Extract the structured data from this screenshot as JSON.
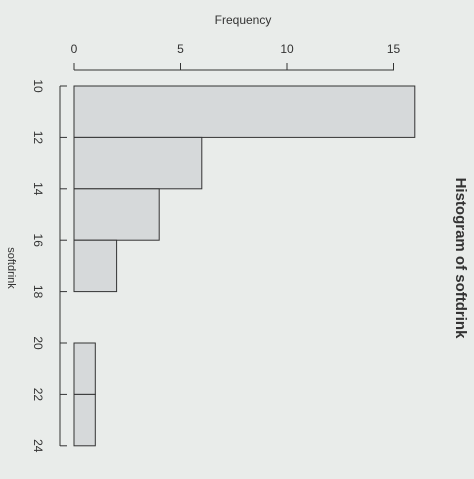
{
  "chart_data": {
    "type": "bar",
    "title": "Histogram of softdrink",
    "xlabel": "Frequency",
    "ylabel": "softdrink",
    "bin_edges": [
      10,
      12,
      14,
      16,
      18,
      20,
      22,
      24
    ],
    "counts": [
      16,
      6,
      4,
      2,
      0,
      1,
      1
    ],
    "freq_ticks": [
      0,
      5,
      10,
      15
    ],
    "class_ticks": [
      10,
      12,
      14,
      16,
      18,
      20,
      22,
      24
    ],
    "xlim": [
      0,
      16
    ],
    "ylim": [
      10,
      24
    ],
    "grid": false,
    "orientation": "horizontal bars",
    "colors": {
      "bar_fill": "#cfd3d4",
      "bar_stroke": "#333333",
      "text": "#333333"
    }
  }
}
